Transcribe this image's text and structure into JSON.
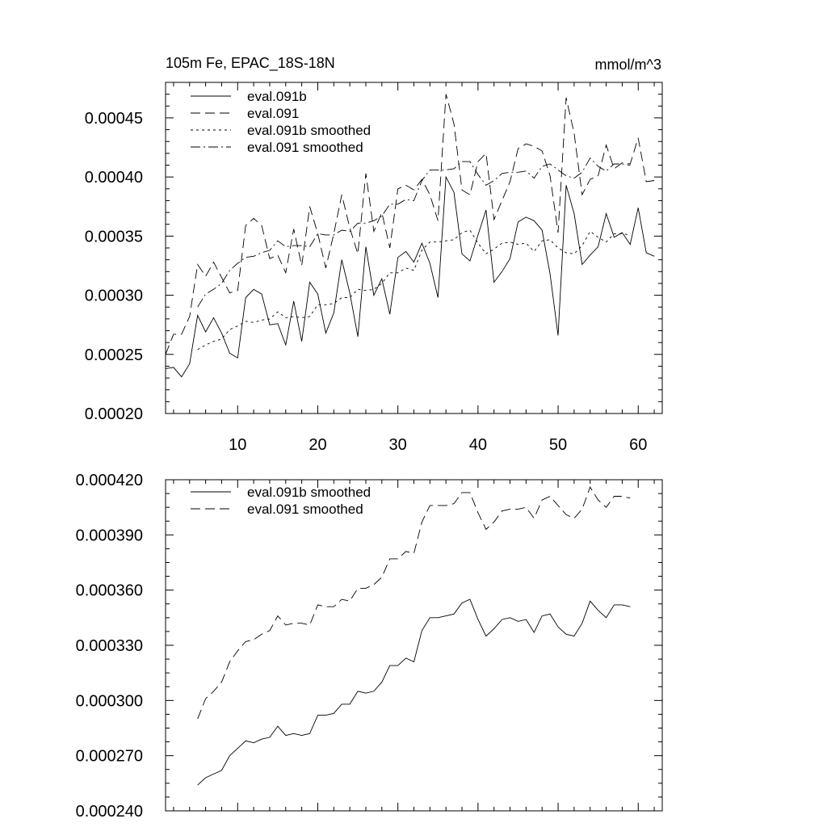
{
  "chart_data": [
    {
      "type": "line",
      "title": "105m Fe, EPAC_18S-18N",
      "units": "mmol/m^3",
      "xlim": [
        1,
        63
      ],
      "ylim": [
        0.0002,
        0.00048
      ],
      "xticks": [
        10,
        20,
        30,
        40,
        50,
        60
      ],
      "xtick_labels": [
        "10",
        "20",
        "30",
        "40",
        "50",
        "60"
      ],
      "yticks": [
        0.0002,
        0.00025,
        0.0003,
        0.00035,
        0.0004,
        0.00045
      ],
      "ytick_labels": [
        "0.00020",
        "0.00025",
        "0.00030",
        "0.00035",
        "0.00040",
        "0.00045"
      ],
      "grid": false,
      "legend_position": "top-left",
      "x": [
        1,
        2,
        3,
        4,
        5,
        6,
        7,
        8,
        9,
        10,
        11,
        12,
        13,
        14,
        15,
        16,
        17,
        18,
        19,
        20,
        21,
        22,
        23,
        24,
        25,
        26,
        27,
        28,
        29,
        30,
        31,
        32,
        33,
        34,
        35,
        36,
        37,
        38,
        39,
        40,
        41,
        42,
        43,
        44,
        45,
        46,
        47,
        48,
        49,
        50,
        51,
        52,
        53,
        54,
        55,
        56,
        57,
        58,
        59,
        60,
        61,
        62
      ],
      "series": [
        {
          "name": "eval.091b",
          "dash": "solid",
          "values": [
            0.000238,
            0.000239,
            0.000231,
            0.000242,
            0.000283,
            0.000269,
            0.000281,
            0.000268,
            0.000251,
            0.000247,
            0.000298,
            0.000305,
            0.000301,
            0.000275,
            0.000276,
            0.000258,
            0.000295,
            0.000261,
            0.000311,
            0.000301,
            0.000268,
            0.000285,
            0.00033,
            0.000302,
            0.000265,
            0.000341,
            0.0003,
            0.000314,
            0.000284,
            0.000332,
            0.000337,
            0.000328,
            0.000344,
            0.000327,
            0.000298,
            0.0004,
            0.000387,
            0.000335,
            0.000329,
            0.000351,
            0.000372,
            0.000311,
            0.00032,
            0.000331,
            0.000362,
            0.000366,
            0.000363,
            0.000355,
            0.000318,
            0.000266,
            0.000393,
            0.000369,
            0.000326,
            0.000334,
            0.000341,
            0.000369,
            0.000349,
            0.000353,
            0.000343,
            0.000374,
            0.000336,
            0.000333
          ]
        },
        {
          "name": "eval.091",
          "dash": "dashed",
          "values": [
            0.00025,
            0.000267,
            0.000267,
            0.000282,
            0.000326,
            0.000316,
            0.000328,
            0.000315,
            0.000302,
            0.000304,
            0.000359,
            0.000365,
            0.000359,
            0.000331,
            0.000334,
            0.000319,
            0.000356,
            0.000325,
            0.000375,
            0.000352,
            0.000323,
            0.000352,
            0.000385,
            0.000357,
            0.000335,
            0.000403,
            0.000354,
            0.00037,
            0.00034,
            0.00039,
            0.000393,
            0.000389,
            0.000398,
            0.000385,
            0.000363,
            0.00047,
            0.000445,
            0.000389,
            0.000385,
            0.000413,
            0.00042,
            0.000364,
            0.00038,
            0.000396,
            0.000424,
            0.000428,
            0.000426,
            0.000422,
            0.000401,
            0.000353,
            0.000467,
            0.000437,
            0.000385,
            0.000398,
            0.000401,
            0.000427,
            0.000407,
            0.000412,
            0.000411,
            0.000433,
            0.000396,
            0.000397
          ]
        },
        {
          "name": "eval.091b smoothed",
          "dash": "dotted",
          "values": [
            null,
            null,
            null,
            null,
            0.000254,
            0.000258,
            0.000261,
            0.000263,
            0.000271,
            0.000274,
            0.000278,
            0.000277,
            0.000279,
            0.00028,
            0.000286,
            0.000281,
            0.000282,
            0.000281,
            0.000282,
            0.000292,
            0.000292,
            0.000293,
            0.000298,
            0.000298,
            0.000305,
            0.000304,
            0.000305,
            0.00031,
            0.000319,
            0.000319,
            0.000323,
            0.000321,
            0.000338,
            0.000345,
            0.000345,
            0.000346,
            0.000347,
            0.000353,
            0.000355,
            0.000344,
            0.000335,
            0.000339,
            0.000344,
            0.000345,
            0.000343,
            0.000344,
            0.000337,
            0.000346,
            0.000347,
            0.00034,
            0.000336,
            0.000335,
            0.000342,
            0.000354,
            0.000349,
            0.000345,
            0.000352,
            0.000352,
            0.000351,
            null,
            null,
            null
          ]
        },
        {
          "name": "eval.091 smoothed",
          "dash": "dashdot",
          "values": [
            null,
            null,
            null,
            null,
            0.00029,
            0.000301,
            0.000305,
            0.00031,
            0.000321,
            0.000327,
            0.000332,
            0.000333,
            0.000336,
            0.000338,
            0.000346,
            0.000341,
            0.000342,
            0.000342,
            0.000341,
            0.000352,
            0.000351,
            0.000351,
            0.000355,
            0.000354,
            0.000361,
            0.000361,
            0.000363,
            0.000367,
            0.000377,
            0.000377,
            0.000381,
            0.00038,
            0.000397,
            0.000406,
            0.000406,
            0.000406,
            0.000407,
            0.000413,
            0.000413,
            0.000402,
            0.000393,
            0.000397,
            0.000403,
            0.000404,
            0.000404,
            0.000405,
            0.000399,
            0.000409,
            0.000411,
            0.000406,
            0.000401,
            0.000399,
            0.000404,
            0.000416,
            0.000409,
            0.000405,
            0.000411,
            0.000411,
            0.00041,
            null,
            null,
            null
          ]
        }
      ]
    },
    {
      "type": "line",
      "xlim": [
        1,
        63
      ],
      "ylim": [
        0.00024,
        0.00042
      ],
      "xticks": [
        10,
        20,
        30,
        40,
        50,
        60
      ],
      "yticks": [
        0.00024,
        0.00027,
        0.0003,
        0.00033,
        0.00036,
        0.00039,
        0.00042
      ],
      "ytick_labels": [
        "0.000240",
        "0.000270",
        "0.000300",
        "0.000330",
        "0.000360",
        "0.000390",
        "0.000420"
      ],
      "grid": false,
      "legend_position": "top-left",
      "x": [
        5,
        6,
        7,
        8,
        9,
        10,
        11,
        12,
        13,
        14,
        15,
        16,
        17,
        18,
        19,
        20,
        21,
        22,
        23,
        24,
        25,
        26,
        27,
        28,
        29,
        30,
        31,
        32,
        33,
        34,
        35,
        36,
        37,
        38,
        39,
        40,
        41,
        42,
        43,
        44,
        45,
        46,
        47,
        48,
        49,
        50,
        51,
        52,
        53,
        54,
        55,
        56,
        57,
        58,
        59
      ],
      "series": [
        {
          "name": "eval.091b smoothed",
          "dash": "solid",
          "values": [
            0.000254,
            0.000258,
            0.00026,
            0.000262,
            0.00027,
            0.000274,
            0.000278,
            0.000277,
            0.000279,
            0.00028,
            0.000286,
            0.000281,
            0.000282,
            0.000281,
            0.000282,
            0.000292,
            0.000292,
            0.000293,
            0.000298,
            0.000298,
            0.000305,
            0.000304,
            0.000305,
            0.00031,
            0.000319,
            0.000319,
            0.000323,
            0.000321,
            0.000338,
            0.000345,
            0.000345,
            0.000346,
            0.000347,
            0.000353,
            0.000355,
            0.000344,
            0.000335,
            0.000339,
            0.000344,
            0.000345,
            0.000343,
            0.000344,
            0.000337,
            0.000346,
            0.000347,
            0.00034,
            0.000336,
            0.000335,
            0.000342,
            0.000354,
            0.000349,
            0.000345,
            0.000352,
            0.000352,
            0.000351
          ]
        },
        {
          "name": "eval.091 smoothed",
          "dash": "dashed",
          "values": [
            0.00029,
            0.000301,
            0.000305,
            0.00031,
            0.000321,
            0.000327,
            0.000332,
            0.000333,
            0.000336,
            0.000338,
            0.000346,
            0.000341,
            0.000342,
            0.000342,
            0.000341,
            0.000352,
            0.000351,
            0.000351,
            0.000355,
            0.000354,
            0.000361,
            0.000361,
            0.000363,
            0.000367,
            0.000377,
            0.000377,
            0.000381,
            0.00038,
            0.000397,
            0.000406,
            0.000406,
            0.000406,
            0.000407,
            0.000413,
            0.000413,
            0.000402,
            0.000393,
            0.000397,
            0.000403,
            0.000404,
            0.000404,
            0.000405,
            0.000399,
            0.000409,
            0.000411,
            0.000406,
            0.000401,
            0.000399,
            0.000404,
            0.000416,
            0.000409,
            0.000405,
            0.000411,
            0.000411,
            0.00041
          ]
        }
      ]
    }
  ]
}
